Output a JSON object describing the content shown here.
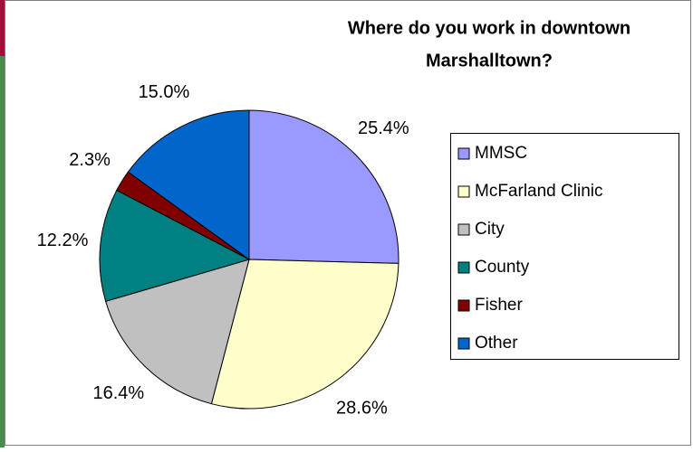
{
  "chart_data": {
    "type": "pie",
    "title": [
      "Where do you work in downtown",
      "Marshalltown?"
    ],
    "categories": [
      "MMSC",
      "McFarland Clinic",
      "City",
      "County",
      "Fisher",
      "Other"
    ],
    "values": [
      25.4,
      28.6,
      16.4,
      12.2,
      2.3,
      15.0
    ],
    "value_labels": [
      "25.4%",
      "28.6%",
      "16.4%",
      "12.2%",
      "2.3%",
      "15.0%"
    ],
    "colors": [
      "#9999ff",
      "#ffffcc",
      "#c0c0c0",
      "#008080",
      "#800000",
      "#0066cc"
    ],
    "legend": "right"
  }
}
